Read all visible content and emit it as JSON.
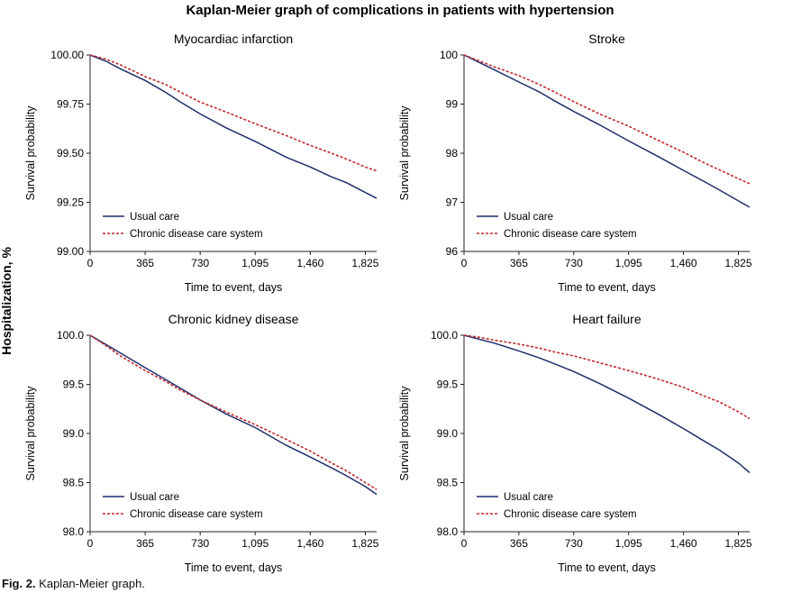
{
  "figure": {
    "title": "Kaplan-Meier graph of complications in patients with hypertension",
    "y_super_label": "Hospitalization, %",
    "caption_label": "Fig. 2.",
    "caption_text": " Kaplan-Meier graph."
  },
  "chart_data": [
    {
      "type": "line",
      "title": "Myocardiac infarction",
      "xlabel": "Time to event, days",
      "ylabel": "Survival probability",
      "xlim": [
        0,
        1900
      ],
      "ylim": [
        99.0,
        100.0
      ],
      "xticks": [
        0,
        365,
        730,
        1095,
        1460,
        1825
      ],
      "xtick_labels": [
        "0",
        "365",
        "730",
        "1,095",
        "1,460",
        "1,825"
      ],
      "yticks": [
        99.0,
        99.25,
        99.5,
        99.75,
        100.0
      ],
      "ytick_labels": [
        "99.00",
        "99.25",
        "99.50",
        "99.75",
        "100.00"
      ],
      "legend_position": "lower-left",
      "series": [
        {
          "name": "Usual care",
          "color": "#1f2d6b",
          "dash": "solid",
          "x": [
            0,
            100,
            200,
            365,
            500,
            600,
            730,
            900,
            1095,
            1300,
            1460,
            1600,
            1700,
            1825,
            1900
          ],
          "y": [
            100.0,
            99.97,
            99.93,
            99.87,
            99.81,
            99.76,
            99.7,
            99.63,
            99.56,
            99.48,
            99.43,
            99.38,
            99.35,
            99.3,
            99.27
          ]
        },
        {
          "name": "Chronic disease care system",
          "color": "#c0272d",
          "dash": "dashed",
          "x": [
            0,
            100,
            200,
            365,
            500,
            600,
            730,
            900,
            1095,
            1300,
            1460,
            1600,
            1700,
            1825,
            1900
          ],
          "y": [
            100.0,
            99.98,
            99.95,
            99.89,
            99.85,
            99.81,
            99.76,
            99.71,
            99.65,
            99.59,
            99.54,
            99.5,
            99.47,
            99.43,
            99.41
          ]
        }
      ]
    },
    {
      "type": "line",
      "title": "Stroke",
      "xlabel": "Time to event, days",
      "ylabel": "Survival probability",
      "xlim": [
        0,
        1900
      ],
      "ylim": [
        96,
        100
      ],
      "xticks": [
        0,
        365,
        730,
        1095,
        1460,
        1825
      ],
      "xtick_labels": [
        "0",
        "365",
        "730",
        "1,095",
        "1,460",
        "1,825"
      ],
      "yticks": [
        96,
        97,
        98,
        99,
        100
      ],
      "ytick_labels": [
        "96",
        "97",
        "98",
        "99",
        "100"
      ],
      "legend_position": "lower-left",
      "series": [
        {
          "name": "Usual care",
          "color": "#1f2d6b",
          "dash": "solid",
          "x": [
            0,
            100,
            200,
            365,
            500,
            600,
            730,
            900,
            1095,
            1300,
            1460,
            1600,
            1700,
            1825,
            1900
          ],
          "y": [
            100.0,
            99.85,
            99.7,
            99.45,
            99.25,
            99.07,
            98.85,
            98.58,
            98.25,
            97.92,
            97.65,
            97.42,
            97.25,
            97.03,
            96.9
          ]
        },
        {
          "name": "Chronic disease care system",
          "color": "#c0272d",
          "dash": "dashed",
          "x": [
            0,
            100,
            200,
            365,
            500,
            600,
            730,
            900,
            1095,
            1300,
            1460,
            1600,
            1700,
            1825,
            1900
          ],
          "y": [
            100.0,
            99.88,
            99.76,
            99.58,
            99.4,
            99.25,
            99.05,
            98.8,
            98.55,
            98.25,
            98.02,
            97.8,
            97.66,
            97.48,
            97.38
          ]
        }
      ]
    },
    {
      "type": "line",
      "title": "Chronic kidney disease",
      "xlabel": "Time to event, days",
      "ylabel": "Survival probability",
      "xlim": [
        0,
        1900
      ],
      "ylim": [
        98.0,
        100.0
      ],
      "xticks": [
        0,
        365,
        730,
        1095,
        1460,
        1825
      ],
      "xtick_labels": [
        "0",
        "365",
        "730",
        "1,095",
        "1,460",
        "1,825"
      ],
      "yticks": [
        98.0,
        98.5,
        99.0,
        99.5,
        100.0
      ],
      "ytick_labels": [
        "98.0",
        "98.5",
        "99.0",
        "99.5",
        "100.0"
      ],
      "legend_position": "lower-left",
      "series": [
        {
          "name": "Usual care",
          "color": "#1f2d6b",
          "dash": "solid",
          "x": [
            0,
            100,
            200,
            365,
            500,
            600,
            730,
            900,
            1095,
            1300,
            1460,
            1600,
            1700,
            1825,
            1900
          ],
          "y": [
            100.0,
            99.91,
            99.82,
            99.67,
            99.55,
            99.46,
            99.34,
            99.2,
            99.06,
            98.88,
            98.76,
            98.65,
            98.57,
            98.46,
            98.38
          ]
        },
        {
          "name": "Chronic disease care system",
          "color": "#c0272d",
          "dash": "dashed",
          "x": [
            0,
            100,
            200,
            365,
            500,
            600,
            730,
            900,
            1095,
            1300,
            1460,
            1600,
            1700,
            1825,
            1900
          ],
          "y": [
            100.0,
            99.9,
            99.79,
            99.64,
            99.53,
            99.44,
            99.34,
            99.22,
            99.09,
            98.94,
            98.82,
            98.7,
            98.62,
            98.5,
            98.43
          ]
        }
      ]
    },
    {
      "type": "line",
      "title": "Heart failure",
      "xlabel": "Time to event, days",
      "ylabel": "Survival probability",
      "xlim": [
        0,
        1900
      ],
      "ylim": [
        98.0,
        100.0
      ],
      "xticks": [
        0,
        365,
        730,
        1095,
        1460,
        1825
      ],
      "xtick_labels": [
        "0",
        "365",
        "730",
        "1,095",
        "1,460",
        "1,825"
      ],
      "yticks": [
        98.0,
        98.5,
        99.0,
        99.5,
        100.0
      ],
      "ytick_labels": [
        "98.0",
        "98.5",
        "99.0",
        "99.5",
        "100.0"
      ],
      "legend_position": "lower-left",
      "series": [
        {
          "name": "Usual care",
          "color": "#1f2d6b",
          "dash": "solid",
          "x": [
            0,
            100,
            200,
            365,
            500,
            600,
            730,
            900,
            1095,
            1300,
            1460,
            1600,
            1700,
            1825,
            1900
          ],
          "y": [
            100.0,
            99.96,
            99.92,
            99.84,
            99.77,
            99.71,
            99.63,
            99.51,
            99.36,
            99.19,
            99.05,
            98.92,
            98.83,
            98.7,
            98.6
          ]
        },
        {
          "name": "Chronic disease care system",
          "color": "#c0272d",
          "dash": "dashed",
          "x": [
            0,
            100,
            200,
            365,
            500,
            600,
            730,
            900,
            1095,
            1300,
            1460,
            1600,
            1700,
            1825,
            1900
          ],
          "y": [
            100.0,
            99.98,
            99.95,
            99.91,
            99.87,
            99.83,
            99.79,
            99.72,
            99.64,
            99.55,
            99.47,
            99.38,
            99.32,
            99.22,
            99.15
          ]
        }
      ]
    }
  ]
}
